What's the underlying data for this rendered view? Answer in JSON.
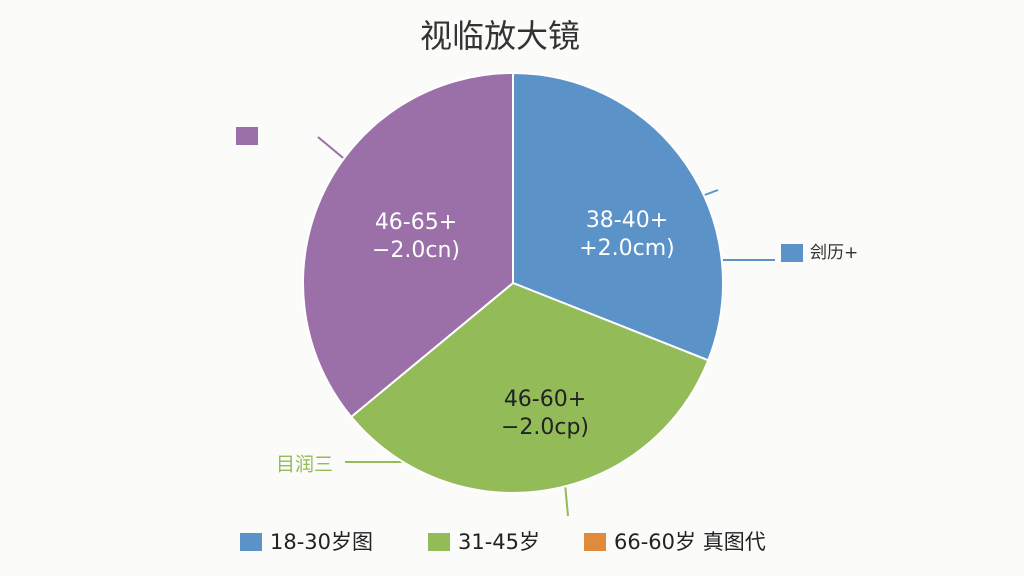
{
  "chart_data": {
    "type": "pie",
    "title": "视临放大镜",
    "categories": [
      "38-40+",
      "46-60+",
      "46-65+"
    ],
    "slice_labels": [
      [
        "38-40+",
        "+2.0cm)"
      ],
      [
        "46-60+",
        "−2.0cp)"
      ],
      [
        "46-65+",
        "−2.0cn)"
      ]
    ],
    "values": [
      31,
      33,
      36
    ],
    "colors": [
      "#5b93c8",
      "#93bb57",
      "#9b6fa8"
    ],
    "callouts": [
      {
        "label": "刽历+",
        "color": "#5b93c8"
      },
      {
        "label": "目润三",
        "color": "#93bb57"
      }
    ],
    "legend": [
      {
        "name": "18-30岁图",
        "color": "#5b93c8"
      },
      {
        "name": "31-45岁",
        "color": "#93bb57"
      },
      {
        "name": "66-60岁 真图代",
        "color": "#e08a3c"
      }
    ]
  }
}
